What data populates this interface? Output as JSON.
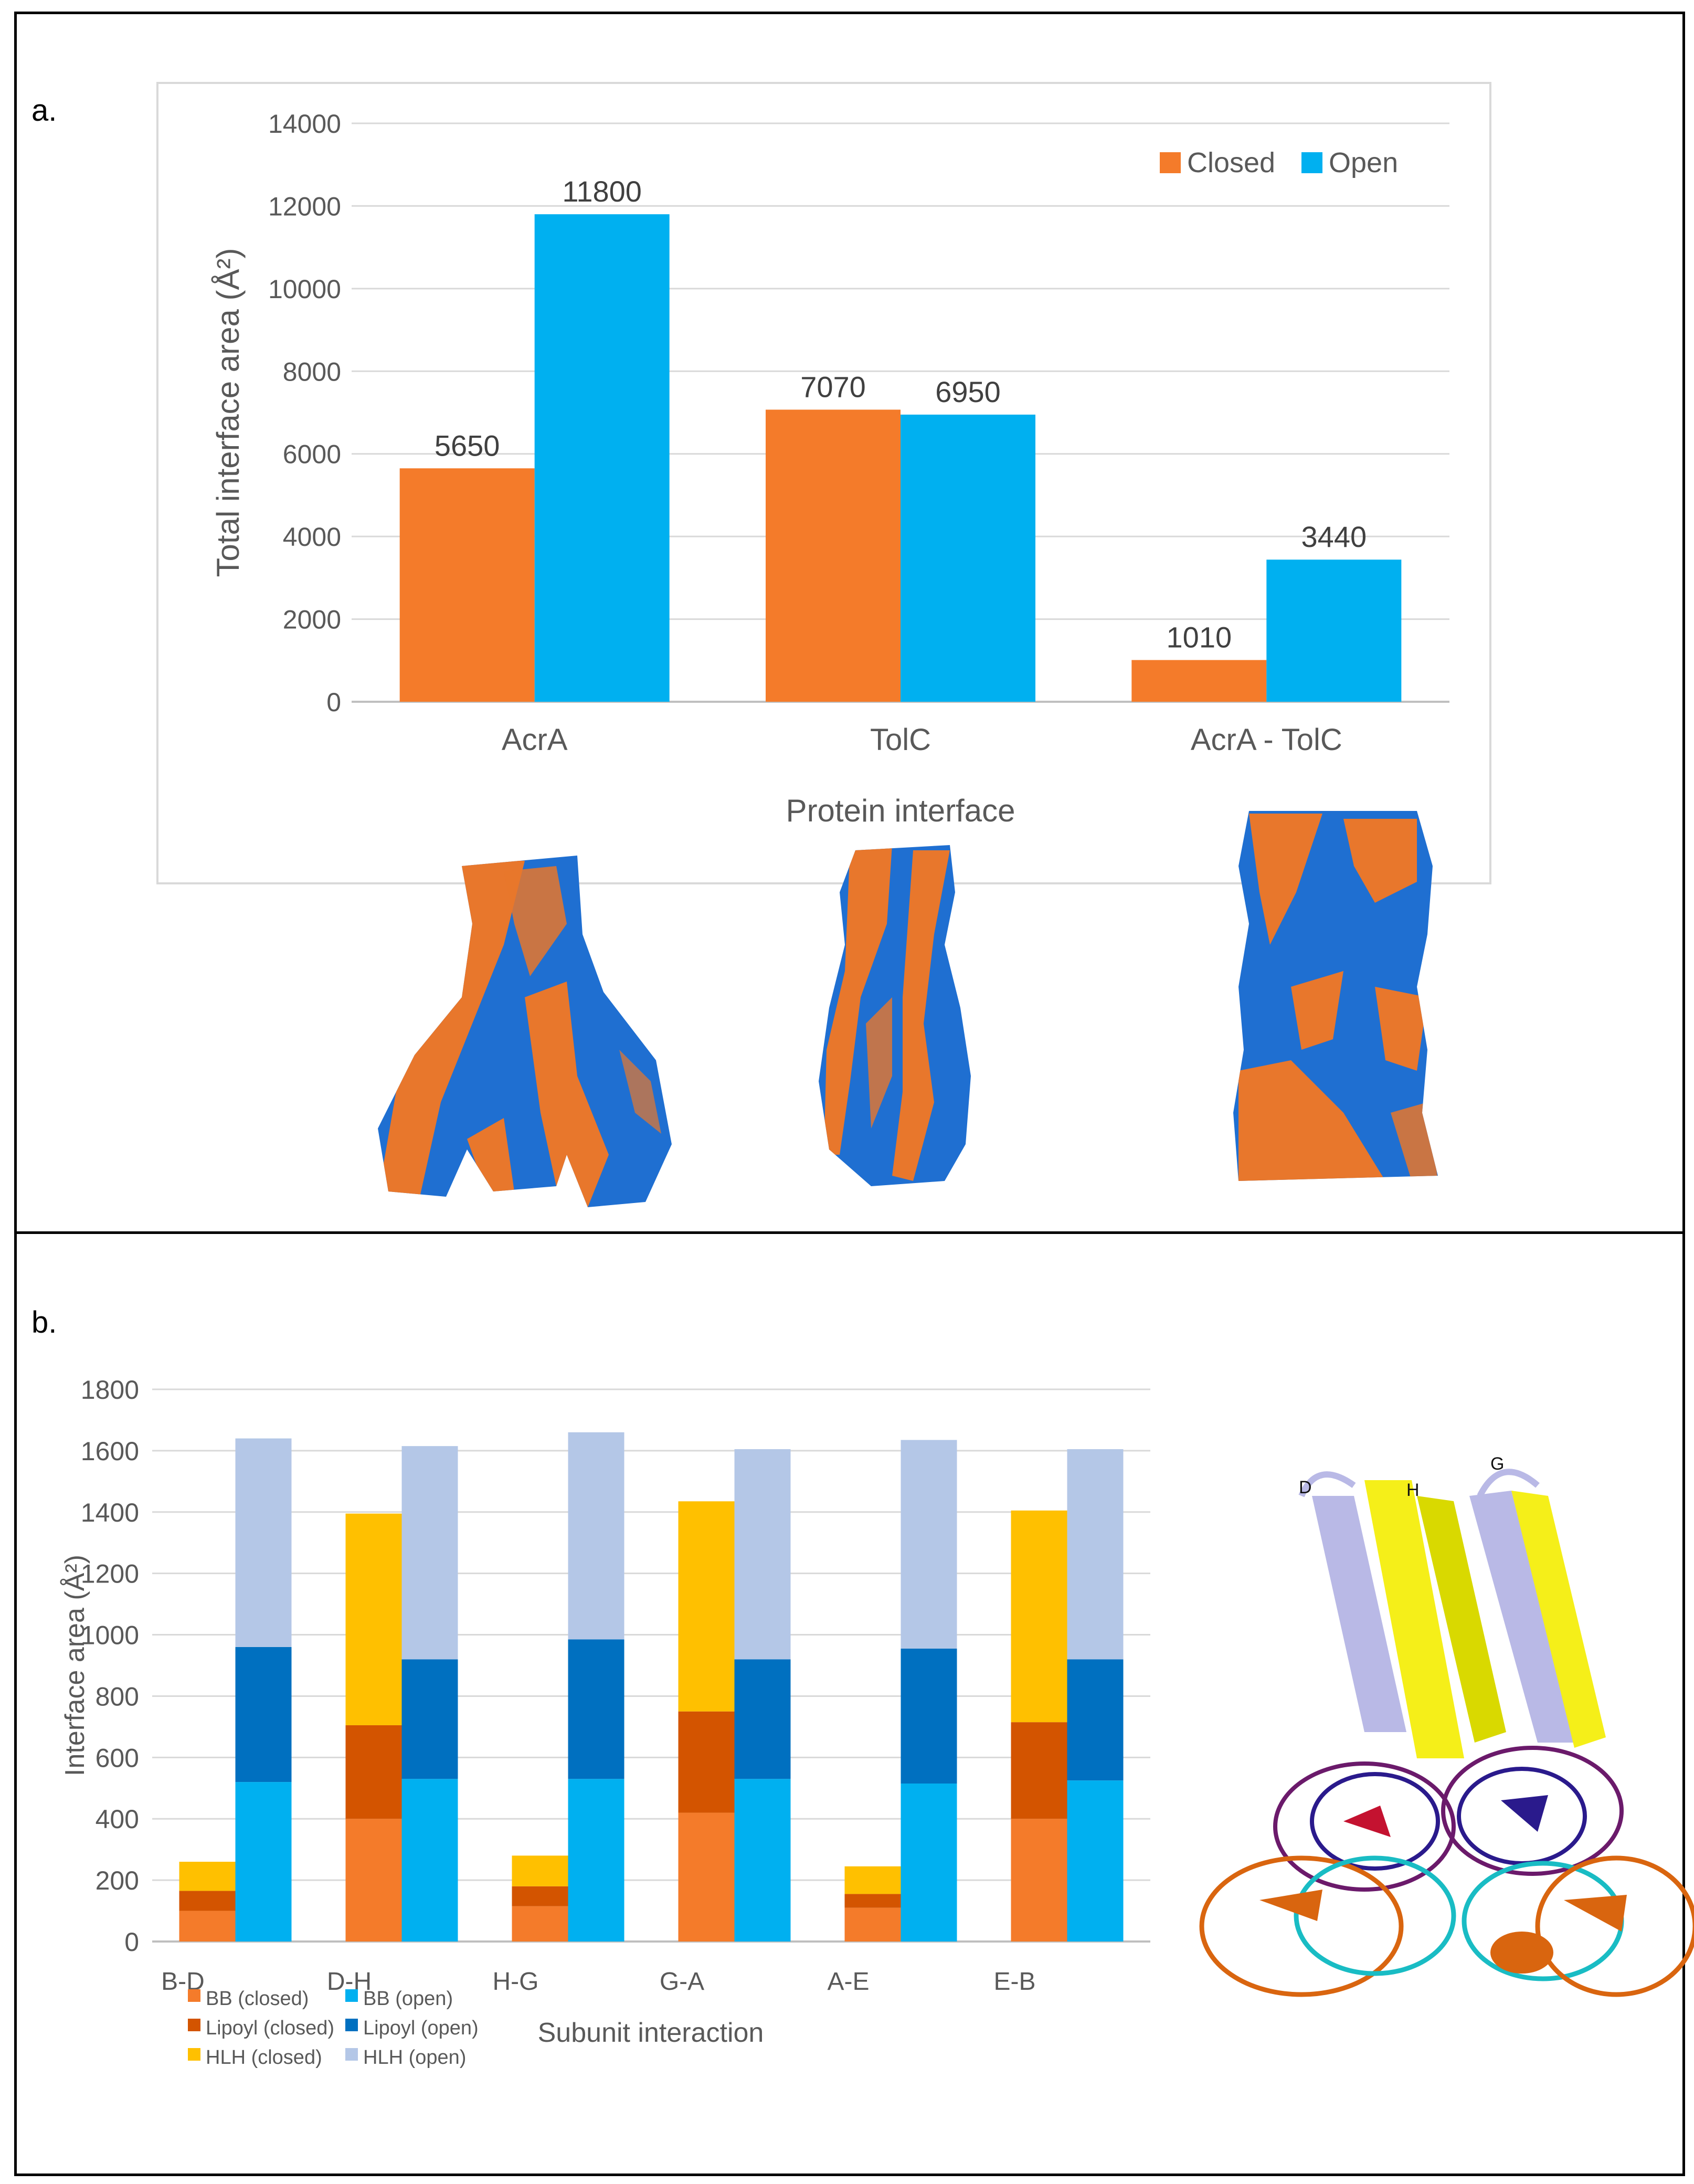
{
  "panels": {
    "a": {
      "label": "a.",
      "chart_data": {
        "type": "bar",
        "title": "",
        "xlabel": "Protein interface",
        "ylabel": "Total interface area (Å²)",
        "ylim": [
          0,
          14000
        ],
        "yticks": [
          0,
          2000,
          4000,
          6000,
          8000,
          10000,
          12000,
          14000
        ],
        "categories": [
          "AcrA",
          "TolC",
          "AcrA - TolC"
        ],
        "series": [
          {
            "name": "Closed",
            "color": "#F47B2A",
            "values": [
              5650,
              7070,
              1010
            ]
          },
          {
            "name": "Open",
            "color": "#00B0F0",
            "values": [
              11800,
              6950,
              3440
            ]
          }
        ],
        "data_labels": true,
        "legend_position": "top-right",
        "grid": true
      },
      "illustrations": [
        "acra-surface-model",
        "tolc-surface-model",
        "acra-tolc-surface-model"
      ]
    },
    "b": {
      "label": "b.",
      "chart_data": {
        "type": "bar",
        "stacked": true,
        "title": "",
        "xlabel": "Subunit interaction",
        "ylabel": "Interface area (Å²)",
        "ylim": [
          0,
          1800
        ],
        "yticks": [
          0,
          200,
          400,
          600,
          800,
          1000,
          1200,
          1400,
          1600,
          1800
        ],
        "categories": [
          "B-D",
          "D-H",
          "H-G",
          "G-A",
          "A-E",
          "E-B"
        ],
        "groups": [
          {
            "name": "closed",
            "series": [
              {
                "name": "BB (closed)",
                "color": "#F47B2A",
                "values": [
                  100,
                  400,
                  115,
                  420,
                  110,
                  400
                ]
              },
              {
                "name": "Lipoyl (closed)",
                "color": "#D35400",
                "values": [
                  65,
                  305,
                  65,
                  330,
                  45,
                  315
                ]
              },
              {
                "name": "HLH (closed)",
                "color": "#FFC000",
                "values": [
                  95,
                  690,
                  100,
                  685,
                  90,
                  690
                ]
              }
            ]
          },
          {
            "name": "open",
            "series": [
              {
                "name": "BB (open)",
                "color": "#00B0F0",
                "values": [
                  520,
                  530,
                  530,
                  530,
                  515,
                  525
                ]
              },
              {
                "name": "Lipoyl (open)",
                "color": "#0070C0",
                "values": [
                  440,
                  390,
                  455,
                  390,
                  440,
                  395
                ]
              },
              {
                "name": "HLH (open)",
                "color": "#B4C7E7",
                "values": [
                  680,
                  695,
                  675,
                  685,
                  680,
                  685
                ]
              }
            ]
          }
        ],
        "legend_position": "bottom-left",
        "grid": true
      },
      "illustration": {
        "name": "acra-hexamer-ribbon-model",
        "labels": [
          "D",
          "H",
          "G"
        ]
      }
    }
  }
}
